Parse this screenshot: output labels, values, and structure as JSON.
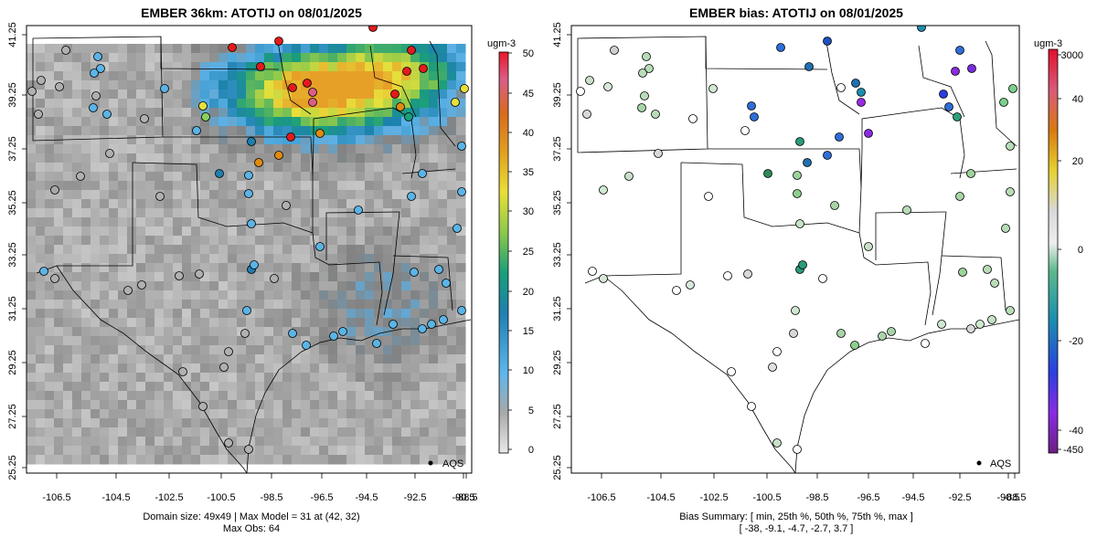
{
  "left_panel": {
    "title": "EMBER 36km: ATOTIJ on 08/01/2025",
    "colorbar_unit": "ugm-3",
    "colorbar_ticks": [
      "0",
      "5",
      "10",
      "15",
      "20",
      "25",
      "30",
      "35",
      "40",
      "45",
      "50"
    ],
    "caption_line1": "Domain size: 49x49 | Max Model = 31 at (42, 32)",
    "caption_line2": "Max Obs: 64",
    "legend_label": "AQS"
  },
  "right_panel": {
    "title": "EMBER bias: ATOTIJ on 08/01/2025",
    "colorbar_unit": "ugm-3",
    "colorbar_ticks": [
      "3000",
      "40",
      "20",
      "0",
      "-20",
      "-40",
      "-450"
    ],
    "caption_line1": "Bias Summary: [ min, 25th %, 50th %, 75th %, max ]",
    "caption_line2": "[ -38,   -9.1,   -4.7,   -2.7,   3.7 ]",
    "legend_label": "AQS"
  },
  "axes": {
    "x_ticks": [
      "-106.5",
      "-104.5",
      "-102.5",
      "-100.5",
      "-98.5",
      "-96.5",
      "-94.5",
      "-92.5",
      "-90.5",
      "-88.5"
    ],
    "y_ticks": [
      "41.25",
      "39.25",
      "37.25",
      "35.25",
      "33.25",
      "31.25",
      "29.25",
      "27.25",
      "25.25"
    ]
  },
  "chart_data": [
    {
      "type": "heatmap",
      "title": "EMBER 36km: ATOTIJ on 08/01/2025",
      "variable": "ATOTIJ",
      "units": "ugm-3",
      "grid": "49x49",
      "max_model": 31,
      "max_model_cell": [
        42,
        32
      ],
      "max_obs": 64,
      "colorbar_range": [
        0,
        50
      ],
      "lon_range": [
        -107,
        -88.2
      ],
      "lat_range": [
        25.25,
        41.25
      ],
      "observations": "AQS",
      "hotspot": {
        "lon": -94.5,
        "lat": 39.2,
        "value": 31
      }
    },
    {
      "type": "scatter",
      "title": "EMBER bias: ATOTIJ on 08/01/2025",
      "units": "ugm-3",
      "bias_summary": {
        "min": -38,
        "p25": -9.1,
        "median": -4.7,
        "p75": -2.7,
        "max": 3.7
      },
      "colorbar_range": [
        -450,
        3000
      ],
      "observations": "AQS"
    }
  ],
  "colors": {
    "frame": "#000000",
    "ocean": "#ffffff",
    "grey_low": "#bdbdbd",
    "blue": "#5ab4e6",
    "green": "#7ac25a",
    "yellow": "#e8e03a",
    "orange": "#e08a10",
    "red": "#e31a1c"
  }
}
